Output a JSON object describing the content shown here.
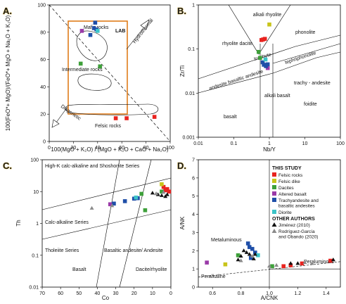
{
  "colors": {
    "felsic_rocks": "#e8231f",
    "felsic_dike": "#c8c41a",
    "dacites": "#3ea03a",
    "altered_basalt": "#9a3aa8",
    "trachy_basaltic": "#1f4fa8",
    "diorite": "#3cc4c8",
    "jimenez": "#111111",
    "rodriguez": "#8a8a8a",
    "lab_box": "#e07c1a"
  },
  "panels": {
    "A": {
      "panel_letter": "A.",
      "xlabel": "100(MgO + K₂O) / (MgO + K₂O + CaO + Na₂O)",
      "ylabel": "100(FeO*+ MgO)/(FeO*+ MgO + Na₂O + K₂O)",
      "xticks": [
        "0",
        "20",
        "40",
        "60",
        "80",
        "100"
      ],
      "yticks": [
        "0",
        "20",
        "40",
        "60",
        "80",
        "100"
      ],
      "labels": {
        "lab": "LAB",
        "mafic": "Mafic rocks",
        "intermediate": "Intermediate rocks",
        "felsic": "Felsic rocks",
        "hydrothermal": "Hydrothermal",
        "diagenetic": "Diagenetic"
      }
    },
    "B": {
      "panel_letter": "B.",
      "xlabel": "Nb/Y",
      "ylabel": "Zr/Ti",
      "xticks": [
        "0.01",
        "0.1",
        "1",
        "10",
        "100"
      ],
      "yticks": [
        "1",
        "0.1",
        "0.01",
        "0.001"
      ],
      "fields": {
        "alkali_rhyolite": "alkali rhyolite",
        "rhyolite_dacite": "rhyolite dacite",
        "phonolite": "phonolite",
        "trachyte": "trachyte",
        "tephriphonolite": "tephriphonolite",
        "andesite": "andesite basaltic andesite",
        "trachy_andesite": "trachy - andesite",
        "alkali_basalt": "alkali basalt",
        "foidite": "foidite",
        "basalt": "basalt"
      }
    },
    "C": {
      "panel_letter": "C.",
      "xlabel": "Co",
      "ylabel": "Th",
      "xticks": [
        "70",
        "60",
        "50",
        "40",
        "30",
        "20",
        "10",
        "0"
      ],
      "yticks": [
        "100",
        "10",
        "1",
        "0.1",
        "0.01"
      ],
      "fields": {
        "hk": "High-K calc-alkaline and Shoshonite Series",
        "calc": "Calc-alkaline Series",
        "tholeiite": "Tholeiite Series",
        "basalt": "Basalt",
        "basaltic_andesite": "Basaltic andesite/ Andesite",
        "dacite": "Dacite/rhyolite"
      }
    },
    "D": {
      "panel_letter": "D.",
      "xlabel": "A/CNK",
      "ylabel": "A/NK",
      "xticks": [
        "0.6",
        "0.8",
        "1.0",
        "1.2",
        "1.4"
      ],
      "yticks": [
        "0",
        "1",
        "2",
        "3",
        "4",
        "5",
        "6",
        "7"
      ],
      "fields": {
        "metaluminous": "Metaluminous",
        "peraluminous": "Peraluminous",
        "peralkaline": "Peralkaline"
      },
      "legend": {
        "this_study": "THIS STUDY",
        "felsic_rocks": "Felsic rocks",
        "felsic_dike": "Felsic dike",
        "dacites": "Dacites",
        "altered_basalt": "Altered basalt",
        "trachy": "Trachyandesite and basaltic andesites",
        "diorite": "Diorite",
        "other_authors": "OTHER AUTHORS",
        "jimenez": "Jiménez (2010)",
        "rodriguez": "Rodríguez-García and Obando (2020)"
      }
    }
  },
  "chart_data": [
    {
      "panel": "A",
      "type": "scatter",
      "xlabel": "100(MgO + K₂O) / (MgO + K₂O + CaO + Na₂O)",
      "ylabel": "100(FeO*+ MgO)/(FeO*+ MgO + Na₂O + K₂O)",
      "xlim": [
        0,
        100
      ],
      "ylim": [
        0,
        100
      ],
      "series": [
        {
          "name": "Felsic rocks",
          "color": "felsic_rocks",
          "points": [
            [
              55,
              17
            ],
            [
              64,
              17
            ],
            [
              87,
              18
            ]
          ]
        },
        {
          "name": "Dacites",
          "color": "dacites",
          "points": [
            [
              26,
              57
            ],
            [
              42,
              55
            ]
          ]
        },
        {
          "name": "Altered basalt",
          "color": "altered_basalt",
          "points": [
            [
              27,
              81
            ]
          ]
        },
        {
          "name": "Trachyandesite and basaltic andesites",
          "color": "trachy_basaltic",
          "points": [
            [
              38,
              87
            ],
            [
              37,
              83
            ],
            [
              39,
              82
            ],
            [
              34,
              78
            ]
          ]
        },
        {
          "name": "Diorite",
          "color": "diorite",
          "points": [
            [
              40,
              81
            ]
          ]
        }
      ]
    },
    {
      "panel": "B",
      "type": "scatter",
      "xlabel": "Nb/Y",
      "ylabel": "Zr/Ti",
      "xscale": "log",
      "yscale": "log",
      "xlim": [
        0.01,
        100
      ],
      "ylim": [
        0.001,
        1
      ],
      "series": [
        {
          "name": "Felsic rocks",
          "color": "felsic_rocks",
          "points": [
            [
              0.6,
              0.16
            ],
            [
              0.67,
              0.165
            ],
            [
              0.75,
              0.17
            ]
          ]
        },
        {
          "name": "Felsic dike",
          "color": "felsic_dike",
          "points": [
            [
              1.0,
              0.36
            ]
          ]
        },
        {
          "name": "Dacites",
          "color": "dacites",
          "points": [
            [
              0.5,
              0.086
            ],
            [
              0.55,
              0.063
            ]
          ]
        },
        {
          "name": "Altered basalt",
          "color": "altered_basalt",
          "points": [
            [
              0.9,
              0.037
            ]
          ]
        },
        {
          "name": "Trachyandesite and basaltic andesites",
          "color": "trachy_basaltic",
          "points": [
            [
              0.7,
              0.044
            ],
            [
              0.8,
              0.041
            ],
            [
              0.9,
              0.045
            ],
            [
              0.65,
              0.05
            ]
          ]
        },
        {
          "name": "Diorite",
          "color": "diorite",
          "points": [
            [
              0.78,
              0.058
            ]
          ]
        }
      ]
    },
    {
      "panel": "C",
      "type": "scatter",
      "xlabel": "Co",
      "ylabel": "Th",
      "xlim": [
        70,
        0
      ],
      "ylim": [
        0.01,
        100
      ],
      "yscale": "log",
      "series": [
        {
          "name": "Felsic rocks",
          "color": "felsic_rocks",
          "points": [
            [
              4,
              14
            ],
            [
              2,
              12
            ],
            [
              1,
              10
            ],
            [
              3,
              11
            ]
          ]
        },
        {
          "name": "Felsic dike",
          "color": "felsic_dike",
          "points": [
            [
              5,
              17
            ]
          ]
        },
        {
          "name": "Dacites",
          "color": "dacites",
          "points": [
            [
              16,
              8.5
            ],
            [
              14,
              2.6
            ],
            [
              5,
              10
            ]
          ]
        },
        {
          "name": "Altered basalt",
          "color": "altered_basalt",
          "points": [
            [
              33,
              4
            ]
          ]
        },
        {
          "name": "Trachyandesite and basaltic andesites",
          "color": "trachy_basaltic",
          "points": [
            [
              31,
              4.2
            ],
            [
              25,
              5
            ],
            [
              20,
              6
            ],
            [
              18,
              6.2
            ]
          ]
        },
        {
          "name": "Diorite",
          "color": "diorite",
          "points": [
            [
              19,
              6.5
            ]
          ]
        },
        {
          "name": "Jiménez (2010)",
          "color": "jimenez",
          "marker": "triangle",
          "points": [
            [
              10,
              9
            ],
            [
              7,
              8
            ],
            [
              5,
              7.5
            ],
            [
              3,
              7
            ],
            [
              2,
              8
            ]
          ]
        },
        {
          "name": "Rodríguez-García and Obando (2020)",
          "color": "rodriguez",
          "marker": "triangle",
          "points": [
            [
              43,
              3
            ],
            [
              32,
              3.6
            ],
            [
              8,
              8.6
            ],
            [
              4,
              9.5
            ]
          ]
        }
      ]
    },
    {
      "panel": "D",
      "type": "scatter",
      "xlabel": "A/CNK",
      "ylabel": "A/NK",
      "xlim": [
        0.5,
        1.5
      ],
      "ylim": [
        0,
        7
      ],
      "series": [
        {
          "name": "Felsic rocks",
          "color": "felsic_rocks",
          "points": [
            [
              1.1,
              1.15
            ],
            [
              1.15,
              1.2
            ],
            [
              1.23,
              1.3
            ],
            [
              1.43,
              1.45
            ]
          ]
        },
        {
          "name": "Felsic dike",
          "color": "felsic_dike",
          "points": [
            [
              0.69,
              1.25
            ]
          ]
        },
        {
          "name": "Dacites",
          "color": "dacites",
          "points": [
            [
              0.78,
              1.75
            ],
            [
              1.02,
              1.15
            ]
          ]
        },
        {
          "name": "Altered basalt",
          "color": "altered_basalt",
          "points": [
            [
              0.56,
              1.35
            ]
          ]
        },
        {
          "name": "Trachyandesite and basaltic andesites",
          "color": "trachy_basaltic",
          "points": [
            [
              0.85,
              2.4
            ],
            [
              0.86,
              2.2
            ],
            [
              0.88,
              2.1
            ],
            [
              0.9,
              1.9
            ],
            [
              0.87,
              1.6
            ]
          ]
        },
        {
          "name": "Diorite",
          "color": "diorite",
          "points": [
            [
              0.92,
              1.75
            ]
          ]
        },
        {
          "name": "Jiménez (2010)",
          "color": "jimenez",
          "marker": "triangle",
          "points": [
            [
              0.78,
              1.5
            ],
            [
              0.8,
              1.7
            ],
            [
              0.82,
              2.0
            ],
            [
              0.84,
              1.9
            ],
            [
              0.86,
              1.8
            ],
            [
              0.89,
              1.55
            ],
            [
              0.9,
              1.8
            ],
            [
              1.15,
              1.3
            ],
            [
              1.2,
              1.3
            ],
            [
              1.45,
              1.5
            ]
          ]
        },
        {
          "name": "Rodríguez-García and Obando (2020)",
          "color": "rodriguez",
          "marker": "triangle",
          "points": [
            [
              0.8,
              1.45
            ],
            [
              0.88,
              1.7
            ],
            [
              1.0,
              1.15
            ],
            [
              1.05,
              1.2
            ],
            [
              1.25,
              1.35
            ],
            [
              1.3,
              1.3
            ]
          ]
        }
      ]
    }
  ]
}
